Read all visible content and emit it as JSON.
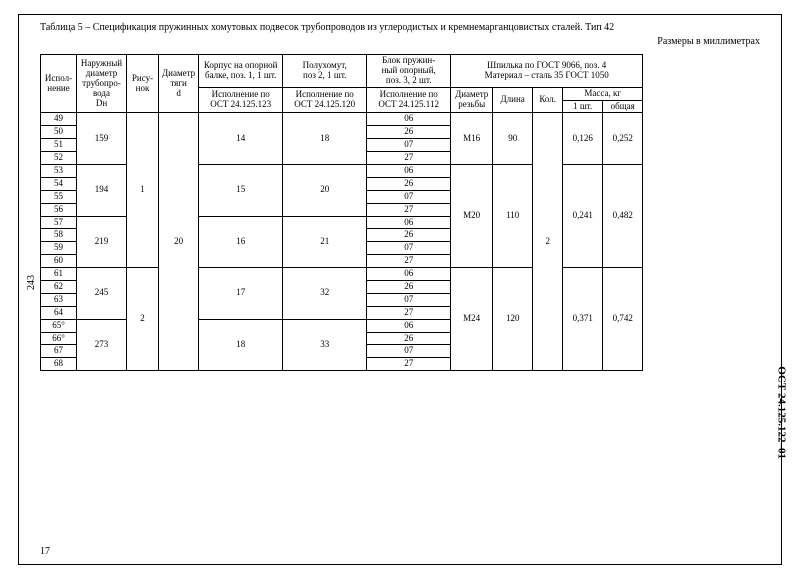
{
  "title_main": "Таблица 5 – Спецификация пружинных хомутовых подвесок трубопроводов из углеродистых и кремнемарганцовистых сталей. Тип 42",
  "title_sub": "Размеры в миллиметрах",
  "side_left": "243",
  "side_right": "ОСТ 24.125.122–01",
  "foot_left": "17",
  "colw": {
    "ispol": 36,
    "dn": 50,
    "ris": 32,
    "d": 40,
    "c1": 84,
    "c2": 84,
    "c3": 84,
    "rez": 42,
    "dlina": 40,
    "kol": 30,
    "m1": 40,
    "m2": 40
  },
  "head": {
    "ispol": "Испол-\nнение",
    "dn": "Наружный\nдиаметр\nтрубопро-\nвода\nDн",
    "ris": "Рису-\nнок",
    "d": "Диаметр\nтяги\nd",
    "c1_top": "Корпус на опорной\nбалке, поз. 1, 1 шт.",
    "c2_top": "Полухомут,\nпоз  2, 1 шт.",
    "c3_top": "Блок пружин-\nный опорный,\nпоз. 3, 2 шт.",
    "c1_sub": "Исполнение по\nОСТ 24.125.123",
    "c2_sub": "Исполнение по\nОСТ 24.125.120",
    "c3_sub": "Исполнение по\nОСТ 24.125.112",
    "stud_top": "Шпилька по ГОСТ 9066, поз. 4\nМатериал –  сталь 35 ГОСТ 1050",
    "rez": "Диаметр\nрезьбы",
    "dlina": "Длина",
    "kol": "Кол.",
    "mass": "Масса, кг",
    "m1": "1 шт.",
    "m2": "общая"
  },
  "rows": [
    {
      "i": "49",
      "dn": "159",
      "ris": "1",
      "d": "20",
      "c1": "14",
      "c2": "18",
      "c3": "06",
      "rez": "М16",
      "dl": "90",
      "kol": "2",
      "m1": "0,126",
      "m2": "0,252"
    },
    {
      "i": "50",
      "c3": "26"
    },
    {
      "i": "51",
      "c3": "07"
    },
    {
      "i": "52",
      "c3": "27"
    },
    {
      "i": "53",
      "dn": "194",
      "c1": "15",
      "c2": "20",
      "c3": "06",
      "rez": "М20",
      "dl": "110",
      "m1": "0,241",
      "m2": "0,482"
    },
    {
      "i": "54",
      "c3": "26"
    },
    {
      "i": "55",
      "c3": "07"
    },
    {
      "i": "56",
      "c3": "27"
    },
    {
      "i": "57",
      "dn": "219",
      "c1": "16",
      "c2": "21",
      "c3": "06"
    },
    {
      "i": "58",
      "c3": "26"
    },
    {
      "i": "59",
      "c3": "07"
    },
    {
      "i": "60",
      "c3": "27"
    },
    {
      "i": "61",
      "dn": "245",
      "ris": "2",
      "c1": "17",
      "c2": "32",
      "c3": "06",
      "rez": "М24",
      "dl": "120",
      "m1": "0,371",
      "m2": "0,742"
    },
    {
      "i": "62",
      "c3": "26"
    },
    {
      "i": "63",
      "c3": "07"
    },
    {
      "i": "64",
      "c3": "27"
    },
    {
      "i": "65°",
      "dn": "273",
      "c1": "18",
      "c2": "33",
      "c3": "06"
    },
    {
      "i": "66°",
      "c3": "26"
    },
    {
      "i": "67",
      "c3": "07"
    },
    {
      "i": "68",
      "c3": "27"
    }
  ]
}
